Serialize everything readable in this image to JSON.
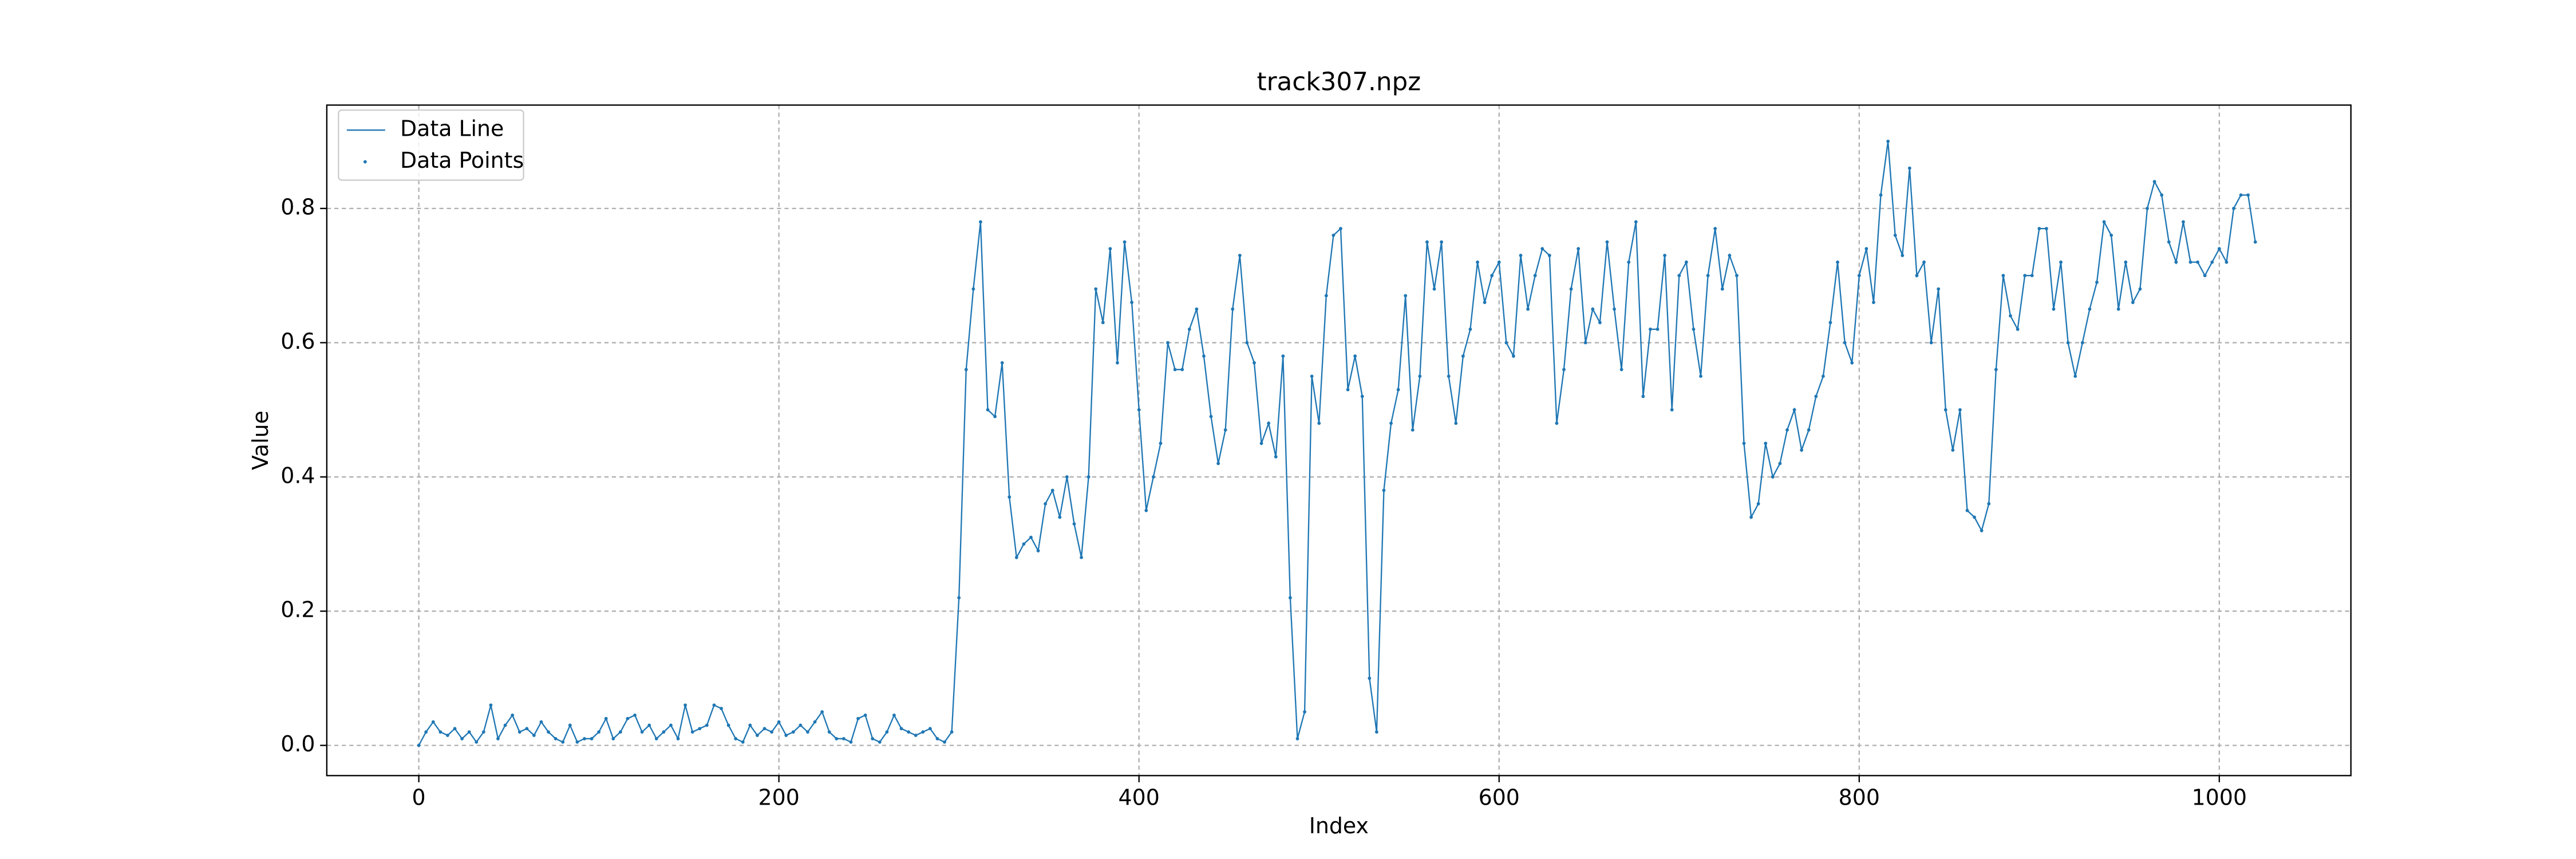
{
  "chart_data": {
    "type": "line",
    "title": "track307.npz",
    "xlabel": "Index",
    "ylabel": "Value",
    "legend": [
      "Data Line",
      "Data Points"
    ],
    "legend_loc": "upper left",
    "color": "#1f77b4",
    "grid": true,
    "xlim": [
      -51.1,
      1073.1
    ],
    "ylim": [
      -0.045,
      0.954
    ],
    "xticks": [
      0,
      200,
      400,
      600,
      800,
      1000
    ],
    "yticks": [
      {
        "value": 0,
        "label": "0.0"
      },
      0.2,
      0.4,
      0.6,
      0.8
    ],
    "x": [
      0,
      4,
      8,
      12,
      16,
      20,
      24,
      28,
      32,
      36,
      40,
      44,
      48,
      52,
      56,
      60,
      64,
      68,
      72,
      76,
      80,
      84,
      88,
      92,
      96,
      100,
      104,
      108,
      112,
      116,
      120,
      124,
      128,
      132,
      136,
      140,
      144,
      148,
      152,
      156,
      160,
      164,
      168,
      172,
      176,
      180,
      184,
      188,
      192,
      196,
      200,
      204,
      208,
      212,
      216,
      220,
      224,
      228,
      232,
      236,
      240,
      244,
      248,
      252,
      256,
      260,
      264,
      268,
      272,
      276,
      280,
      284,
      288,
      292,
      296,
      300,
      304,
      308,
      312,
      316,
      320,
      324,
      328,
      332,
      336,
      340,
      344,
      348,
      352,
      356,
      360,
      364,
      368,
      372,
      376,
      380,
      384,
      388,
      392,
      396,
      400,
      404,
      408,
      412,
      416,
      420,
      424,
      428,
      432,
      436,
      440,
      444,
      448,
      452,
      456,
      460,
      464,
      468,
      472,
      476,
      480,
      484,
      488,
      492,
      496,
      500,
      504,
      508,
      512,
      516,
      520,
      524,
      528,
      532,
      536,
      540,
      544,
      548,
      552,
      556,
      560,
      564,
      568,
      572,
      576,
      580,
      584,
      588,
      592,
      596,
      600,
      604,
      608,
      612,
      616,
      620,
      624,
      628,
      632,
      636,
      640,
      644,
      648,
      652,
      656,
      660,
      664,
      668,
      672,
      676,
      680,
      684,
      688,
      692,
      696,
      700,
      704,
      708,
      712,
      716,
      720,
      724,
      728,
      732,
      736,
      740,
      744,
      748,
      752,
      756,
      760,
      764,
      768,
      772,
      776,
      780,
      784,
      788,
      792,
      796,
      800,
      804,
      808,
      812,
      816,
      820,
      824,
      828,
      832,
      836,
      840,
      844,
      848,
      852,
      856,
      860,
      864,
      868,
      872,
      876,
      880,
      884,
      888,
      892,
      896,
      900,
      904,
      908,
      912,
      916,
      920,
      924,
      928,
      932,
      936,
      940,
      944,
      948,
      952,
      956,
      960,
      964,
      968,
      972,
      976,
      980,
      984,
      988,
      992,
      996,
      1000,
      1004,
      1008,
      1012,
      1016,
      1020
    ],
    "values": [
      0.0,
      0.02,
      0.035,
      0.02,
      0.015,
      0.025,
      0.01,
      0.02,
      0.005,
      0.02,
      0.06,
      0.01,
      0.03,
      0.045,
      0.02,
      0.025,
      0.015,
      0.035,
      0.02,
      0.01,
      0.005,
      0.03,
      0.005,
      0.01,
      0.01,
      0.02,
      0.04,
      0.01,
      0.02,
      0.04,
      0.045,
      0.02,
      0.03,
      0.01,
      0.02,
      0.03,
      0.01,
      0.06,
      0.02,
      0.025,
      0.03,
      0.06,
      0.055,
      0.03,
      0.01,
      0.005,
      0.03,
      0.015,
      0.025,
      0.02,
      0.035,
      0.015,
      0.02,
      0.03,
      0.02,
      0.035,
      0.05,
      0.02,
      0.01,
      0.01,
      0.005,
      0.04,
      0.045,
      0.01,
      0.005,
      0.02,
      0.045,
      0.025,
      0.02,
      0.015,
      0.02,
      0.025,
      0.01,
      0.005,
      0.02,
      0.22,
      0.56,
      0.68,
      0.78,
      0.5,
      0.49,
      0.57,
      0.37,
      0.28,
      0.3,
      0.31,
      0.29,
      0.36,
      0.38,
      0.34,
      0.4,
      0.33,
      0.28,
      0.4,
      0.68,
      0.63,
      0.74,
      0.57,
      0.75,
      0.66,
      0.5,
      0.35,
      0.4,
      0.45,
      0.6,
      0.56,
      0.56,
      0.62,
      0.65,
      0.58,
      0.49,
      0.42,
      0.47,
      0.65,
      0.73,
      0.6,
      0.57,
      0.45,
      0.48,
      0.43,
      0.58,
      0.22,
      0.01,
      0.05,
      0.55,
      0.48,
      0.67,
      0.76,
      0.77,
      0.53,
      0.58,
      0.52,
      0.1,
      0.02,
      0.38,
      0.48,
      0.53,
      0.67,
      0.47,
      0.55,
      0.75,
      0.68,
      0.75,
      0.55,
      0.48,
      0.58,
      0.62,
      0.72,
      0.66,
      0.7,
      0.72,
      0.6,
      0.58,
      0.73,
      0.65,
      0.7,
      0.74,
      0.73,
      0.48,
      0.56,
      0.68,
      0.74,
      0.6,
      0.65,
      0.63,
      0.75,
      0.65,
      0.56,
      0.72,
      0.78,
      0.52,
      0.62,
      0.62,
      0.73,
      0.5,
      0.7,
      0.72,
      0.62,
      0.55,
      0.7,
      0.77,
      0.68,
      0.73,
      0.7,
      0.45,
      0.34,
      0.36,
      0.45,
      0.4,
      0.42,
      0.47,
      0.5,
      0.44,
      0.47,
      0.52,
      0.55,
      0.63,
      0.72,
      0.6,
      0.57,
      0.7,
      0.74,
      0.66,
      0.82,
      0.9,
      0.76,
      0.73,
      0.86,
      0.7,
      0.72,
      0.6,
      0.68,
      0.5,
      0.44,
      0.5,
      0.35,
      0.34,
      0.32,
      0.36,
      0.56,
      0.7,
      0.64,
      0.62,
      0.7,
      0.7,
      0.77,
      0.77,
      0.65,
      0.72,
      0.6,
      0.55,
      0.6,
      0.65,
      0.69,
      0.78,
      0.76,
      0.65,
      0.72,
      0.66,
      0.68,
      0.8,
      0.84,
      0.82,
      0.75,
      0.72,
      0.78,
      0.72,
      0.72,
      0.7,
      0.72,
      0.74,
      0.72,
      0.8,
      0.82,
      0.82,
      0.75
    ]
  }
}
